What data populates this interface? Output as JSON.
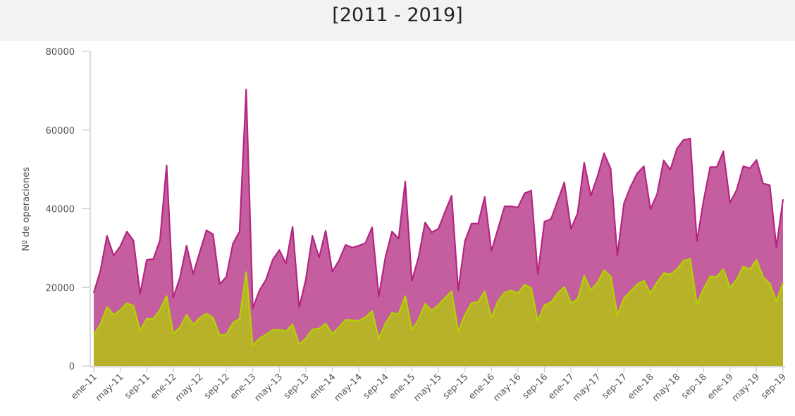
{
  "header": {
    "title": "[2011 - 2019]"
  },
  "colors": {
    "series1_fill": "#c55e9e",
    "series1_line": "#b42581",
    "series2_fill": "#b8b22a",
    "series2_line": "#b2d400",
    "header_bg": "#f2f2f0"
  },
  "chart_data": {
    "type": "area",
    "title": "[2011 - 2019]",
    "xlabel": "",
    "ylabel": "Nº de operaciones",
    "ylim": [
      0,
      80000
    ],
    "yticks": [
      "0",
      "20000",
      "40000",
      "60000",
      "80000"
    ],
    "grid": false,
    "legend": "none",
    "x_start": "ene-11",
    "x_end": "sep-19",
    "xtick_labels": [
      "ene-11",
      "may-11",
      "sep-11",
      "ene-12",
      "may-12",
      "sep-12",
      "ene-13",
      "may-13",
      "sep-13",
      "ene-14",
      "may-14",
      "sep-14",
      "ene-15",
      "may-15",
      "sep-15",
      "ene-16",
      "may-16",
      "sep-16",
      "ene-17",
      "may-17",
      "sep-17",
      "ene-18",
      "may-18",
      "sep-18",
      "ene-19",
      "may-19",
      "sep-19"
    ],
    "series": [
      {
        "values": [
          18600,
          24200,
          33100,
          28100,
          30400,
          34200,
          31900,
          18300,
          27000,
          27200,
          32000,
          51000,
          17400,
          22500,
          30600,
          23400,
          29000,
          34500,
          33500,
          20800,
          22700,
          31100,
          34200,
          70300,
          14700,
          19200,
          22000,
          27000,
          29500,
          26000,
          35400,
          14900,
          22000,
          33100,
          27600,
          34400,
          24000,
          26800,
          30800,
          30100,
          30600,
          31300,
          35300,
          17700,
          27600,
          34200,
          32400,
          46900,
          21700,
          27600,
          36500,
          34000,
          34900,
          39200,
          43300,
          19200,
          31700,
          36200,
          36200,
          43000,
          29200,
          34900,
          40600,
          40600,
          40300,
          43900,
          44600,
          23300,
          36700,
          37400,
          42000,
          46700,
          34900,
          38800,
          51700,
          43300,
          48200,
          54100,
          50100,
          28100,
          41300,
          45600,
          49000,
          50800,
          39900,
          43700,
          52300,
          49900,
          55300,
          57500,
          57800,
          31700,
          42000,
          50600,
          50600,
          54600,
          41500,
          44800,
          50800,
          50300,
          52400,
          46400,
          46000,
          30200,
          42400
        ]
      },
      {
        "values": [
          8000,
          10500,
          15000,
          13000,
          14200,
          16000,
          15300,
          9000,
          12000,
          12000,
          14300,
          17800,
          8200,
          9800,
          13000,
          10500,
          12300,
          13300,
          12300,
          7800,
          8000,
          11000,
          12000,
          23900,
          5200,
          7000,
          8000,
          9200,
          9200,
          8800,
          10600,
          5500,
          7000,
          9300,
          9500,
          10800,
          8200,
          9800,
          11800,
          11600,
          11500,
          12400,
          14000,
          7000,
          10800,
          13500,
          13200,
          17800,
          9200,
          11800,
          15800,
          14100,
          15500,
          17300,
          19000,
          8800,
          13000,
          16000,
          16300,
          19000,
          12200,
          16500,
          18700,
          19200,
          18500,
          20700,
          19800,
          11400,
          15500,
          16200,
          18500,
          20100,
          16000,
          17000,
          23000,
          19200,
          21200,
          24300,
          22800,
          13000,
          17200,
          19000,
          20800,
          21700,
          18500,
          21300,
          23600,
          23300,
          24600,
          26800,
          27200,
          15700,
          19600,
          22800,
          22700,
          24600,
          20000,
          22000,
          25300,
          24600,
          27000,
          22600,
          21000,
          16400,
          21200
        ]
      }
    ]
  }
}
